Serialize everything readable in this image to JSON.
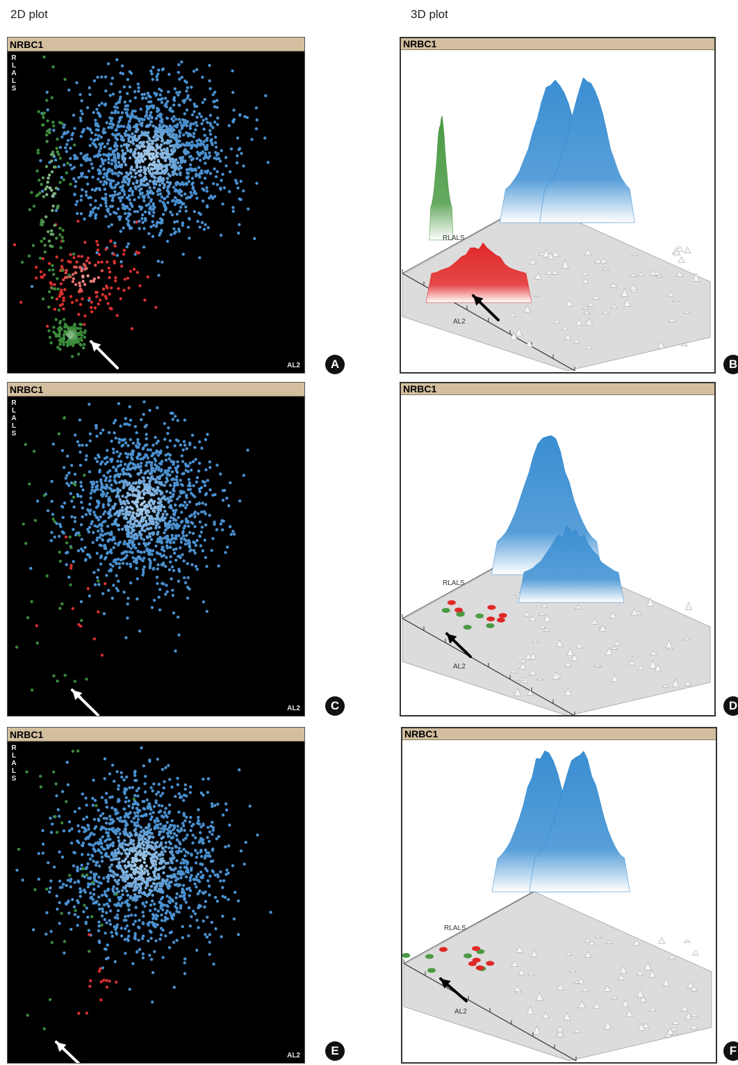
{
  "headings": {
    "left": "2D plot",
    "right": "3D plot"
  },
  "chart_data": [
    {
      "panel": "A",
      "view": "2D plot",
      "type": "scatter",
      "title": "NRBC1",
      "ylabel": "RLALS",
      "xlabel": "AL2",
      "colors": {
        "blue": "#4a90d0",
        "red": "#d83030",
        "green": "#3a8a3a",
        "arrow": "#ffffff"
      },
      "annotations": [
        "arrow pointing to lower-left cluster"
      ],
      "series": [
        {
          "color": "blue",
          "count": 1500,
          "center": [
            0.48,
            0.33
          ],
          "spread": [
            0.13,
            0.12
          ]
        },
        {
          "color": "red",
          "count": 160,
          "center": [
            0.26,
            0.71
          ],
          "spread": [
            0.09,
            0.06
          ]
        },
        {
          "color": "green",
          "count": 120,
          "center": [
            0.14,
            0.45
          ],
          "spread": [
            0.035,
            0.22
          ]
        },
        {
          "color": "green",
          "count": 150,
          "center": [
            0.21,
            0.89
          ],
          "spread": [
            0.025,
            0.02
          ]
        }
      ]
    },
    {
      "panel": "B",
      "view": "3D plot",
      "type": "heatmap",
      "title": "NRBC1",
      "ylabel": "RLALS",
      "xlabel": "AL2",
      "colors": {
        "blue": "#3a8ed2",
        "red": "#e02828",
        "green": "#4a9a44",
        "arrow": "#000000"
      },
      "peaks": [
        {
          "color": "blue",
          "height": 0.55
        },
        {
          "color": "blue",
          "height": 0.56
        },
        {
          "color": "green",
          "height": 0.45
        },
        {
          "color": "red",
          "height": 0.14
        }
      ]
    },
    {
      "panel": "C",
      "view": "2D plot",
      "type": "scatter",
      "title": "NRBC1",
      "ylabel": "RLALS",
      "xlabel": "AL2",
      "colors": {
        "blue": "#4a90d0",
        "red": "#d83030",
        "green": "#3a8a3a",
        "arrow": "#ffffff"
      },
      "annotations": [
        "arrow pointing to lower-left region"
      ],
      "series": [
        {
          "color": "blue",
          "count": 1300,
          "center": [
            0.45,
            0.34
          ],
          "spread": [
            0.12,
            0.13
          ]
        },
        {
          "color": "green",
          "count": 45,
          "center": [
            0.17,
            0.45
          ],
          "spread": [
            0.07,
            0.3
          ]
        },
        {
          "color": "red",
          "count": 12,
          "center": [
            0.24,
            0.62
          ],
          "spread": [
            0.06,
            0.14
          ]
        }
      ]
    },
    {
      "panel": "D",
      "view": "3D plot",
      "type": "heatmap",
      "title": "NRBC1",
      "ylabel": "RLALS",
      "xlabel": "AL2",
      "colors": {
        "blue": "#3a8ed2",
        "red": "#e02828",
        "green": "#4a9a44",
        "arrow": "#000000"
      },
      "peaks": [
        {
          "color": "blue",
          "height": 0.55
        },
        {
          "color": "blue",
          "height": 0.22
        },
        {
          "color": "green",
          "height": 0.03
        },
        {
          "color": "red",
          "height": 0.03
        }
      ]
    },
    {
      "panel": "E",
      "view": "2D plot",
      "type": "scatter",
      "title": "NRBC1",
      "ylabel": "RLALS",
      "xlabel": "AL2",
      "colors": {
        "blue": "#4a90d0",
        "red": "#d83030",
        "green": "#3a8a3a",
        "arrow": "#ffffff"
      },
      "annotations": [
        "arrow pointing to lower-left region"
      ],
      "series": [
        {
          "color": "blue",
          "count": 1400,
          "center": [
            0.45,
            0.38
          ],
          "spread": [
            0.13,
            0.13
          ]
        },
        {
          "color": "green",
          "count": 40,
          "center": [
            0.2,
            0.4
          ],
          "spread": [
            0.1,
            0.3
          ]
        },
        {
          "color": "red",
          "count": 14,
          "center": [
            0.29,
            0.76
          ],
          "spread": [
            0.05,
            0.06
          ]
        }
      ]
    },
    {
      "panel": "F",
      "view": "3D plot",
      "type": "heatmap",
      "title": "NRBC1",
      "ylabel": "RLALS",
      "xlabel": "AL2",
      "colors": {
        "blue": "#3a8ed2",
        "red": "#e02828",
        "green": "#4a9a44",
        "arrow": "#000000"
      },
      "peaks": [
        {
          "color": "blue",
          "height": 0.54
        },
        {
          "color": "blue",
          "height": 0.54
        },
        {
          "color": "green",
          "height": 0.03
        },
        {
          "color": "red",
          "height": 0.03
        }
      ]
    }
  ]
}
